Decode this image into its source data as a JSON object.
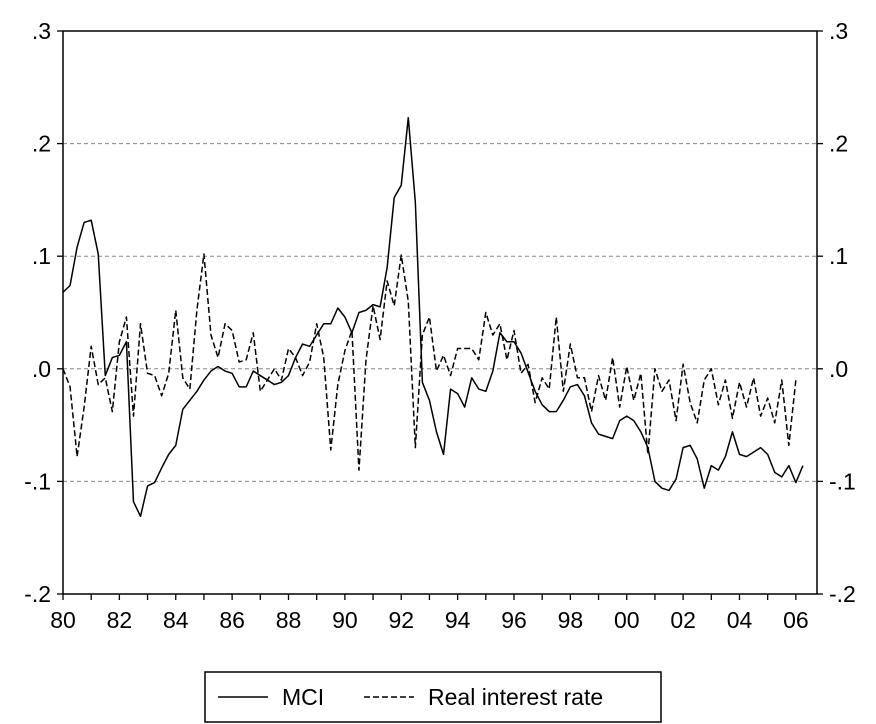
{
  "chart_data": {
    "type": "line",
    "title": "",
    "xlabel": "",
    "ylabel": "",
    "x_start": 1980.0,
    "x_step": 0.25,
    "xlim": [
      1980.0,
      2006.75
    ],
    "ylim": [
      -0.2,
      0.3
    ],
    "grid": "horizontal dashed",
    "legend_position": "bottom-center",
    "x_tick_labels": [
      "80",
      "82",
      "84",
      "86",
      "88",
      "90",
      "92",
      "94",
      "96",
      "98",
      "00",
      "02",
      "04",
      "06"
    ],
    "y_tick_labels": [
      ".3",
      ".2",
      ".1",
      ".0",
      "-.1",
      "-.2"
    ],
    "series": [
      {
        "name": "MCI",
        "style": "solid",
        "color": "#000000",
        "values": [
          0.068,
          0.074,
          0.108,
          0.13,
          0.132,
          0.102,
          -0.006,
          0.01,
          0.012,
          0.024,
          -0.118,
          -0.131,
          -0.104,
          -0.101,
          -0.088,
          -0.076,
          -0.068,
          -0.036,
          -0.028,
          -0.02,
          -0.01,
          -0.002,
          0.002,
          -0.002,
          -0.004,
          -0.016,
          -0.016,
          -0.002,
          -0.006,
          -0.01,
          -0.014,
          -0.012,
          -0.006,
          0.01,
          0.022,
          0.02,
          0.03,
          0.04,
          0.04,
          0.054,
          0.046,
          0.032,
          0.05,
          0.052,
          0.057,
          0.055,
          0.09,
          0.152,
          0.163,
          0.223,
          0.148,
          -0.012,
          -0.028,
          -0.056,
          -0.076,
          -0.018,
          -0.022,
          -0.034,
          -0.008,
          -0.018,
          -0.02,
          -0.002,
          0.032,
          0.024,
          0.024,
          0.014,
          -0.003,
          -0.02,
          -0.032,
          -0.038,
          -0.038,
          -0.028,
          -0.016,
          -0.014,
          -0.024,
          -0.048,
          -0.058,
          -0.06,
          -0.062,
          -0.046,
          -0.042,
          -0.046,
          -0.056,
          -0.07,
          -0.1,
          -0.106,
          -0.108,
          -0.098,
          -0.07,
          -0.068,
          -0.08,
          -0.106,
          -0.086,
          -0.09,
          -0.078,
          -0.056,
          -0.076,
          -0.078,
          -0.074,
          -0.07,
          -0.076,
          -0.092,
          -0.096,
          -0.086,
          -0.101,
          -0.086
        ]
      },
      {
        "name": "Real interest rate",
        "style": "dashed",
        "color": "#000000",
        "values": [
          0.0,
          -0.016,
          -0.078,
          -0.034,
          0.02,
          -0.014,
          -0.008,
          -0.038,
          0.024,
          0.046,
          -0.042,
          0.04,
          -0.004,
          -0.006,
          -0.024,
          -0.004,
          0.052,
          -0.008,
          -0.018,
          0.052,
          0.102,
          0.03,
          0.01,
          0.04,
          0.034,
          0.006,
          0.008,
          0.032,
          -0.02,
          -0.01,
          0.0,
          -0.01,
          0.018,
          0.01,
          -0.006,
          0.006,
          0.04,
          0.01,
          -0.072,
          -0.014,
          0.016,
          0.034,
          -0.09,
          0.008,
          0.056,
          0.026,
          0.078,
          0.056,
          0.101,
          0.06,
          -0.07,
          0.03,
          0.046,
          -0.002,
          0.012,
          -0.006,
          0.018,
          0.018,
          0.018,
          0.008,
          0.05,
          0.03,
          0.04,
          0.008,
          0.034,
          -0.004,
          0.004,
          -0.03,
          -0.008,
          -0.018,
          0.046,
          -0.02,
          0.022,
          -0.008,
          -0.008,
          -0.038,
          -0.006,
          -0.028,
          0.01,
          -0.034,
          0.002,
          -0.028,
          -0.004,
          -0.076,
          0.0,
          -0.02,
          -0.01,
          -0.046,
          0.004,
          -0.03,
          -0.048,
          -0.01,
          0.0,
          -0.032,
          -0.01,
          -0.044,
          -0.012,
          -0.034,
          -0.008,
          -0.042,
          -0.026,
          -0.048,
          -0.01,
          -0.068,
          -0.01
        ]
      }
    ]
  }
}
